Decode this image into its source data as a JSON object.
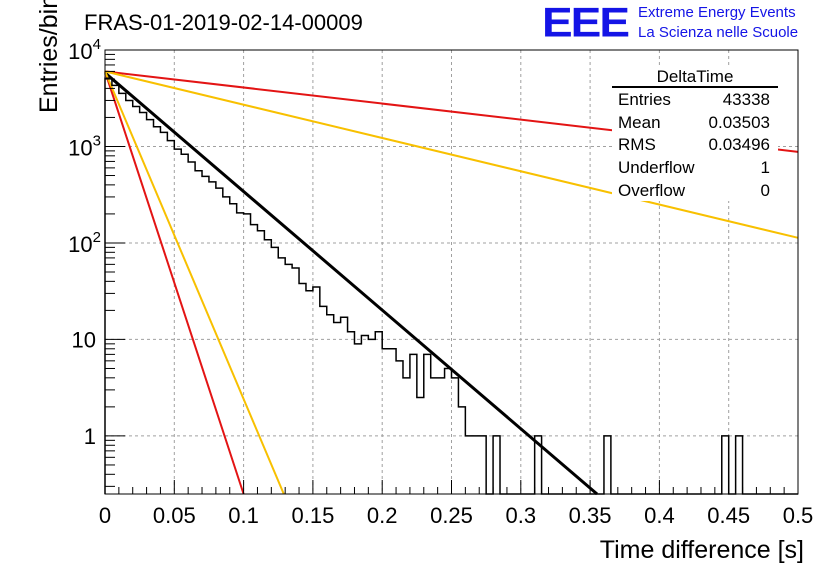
{
  "chart_data": {
    "type": "histogram",
    "title": "FRAS-01-2019-02-14-00009",
    "xlabel": "Time difference [s]",
    "ylabel": "Entries/bin",
    "xlim": [
      0,
      0.5
    ],
    "ylim": [
      0.25,
      10000
    ],
    "yscale": "log",
    "grid": true,
    "x_ticks": [
      "0",
      "0.05",
      "0.1",
      "0.15",
      "0.2",
      "0.25",
      "0.3",
      "0.35",
      "0.4",
      "0.45",
      "0.5"
    ],
    "y_ticks": [
      {
        "value": 1,
        "label": "1"
      },
      {
        "value": 10,
        "label": "10"
      },
      {
        "value": 100,
        "label": "10^2"
      },
      {
        "value": 1000,
        "label": "10^3"
      },
      {
        "value": 10000,
        "label": "10^4"
      }
    ],
    "bin_width": 0.005,
    "histogram_values": [
      5100,
      4300,
      3550,
      3000,
      2600,
      2250,
      1900,
      1600,
      1400,
      1150,
      940,
      830,
      690,
      560,
      490,
      430,
      370,
      300,
      255,
      205,
      200,
      155,
      134,
      108,
      90,
      70,
      60,
      55,
      38,
      32,
      35,
      22,
      18,
      15,
      17,
      12,
      9,
      11,
      10,
      12,
      8,
      8,
      6,
      4,
      7,
      2.5,
      7,
      4,
      4,
      5,
      4,
      2,
      1,
      1,
      1,
      0,
      1,
      0,
      0,
      0,
      0,
      0,
      1,
      0,
      0,
      0,
      0,
      0,
      0,
      0,
      0,
      0,
      1,
      0,
      0,
      0,
      0,
      0,
      0,
      0,
      0,
      0,
      0,
      0,
      0,
      0,
      0,
      0,
      0,
      1,
      0,
      1,
      0,
      0,
      0,
      0,
      0,
      0,
      0,
      0
    ],
    "fit_lines": [
      {
        "color": "#000000",
        "x": [
          0,
          0.355
        ],
        "y": [
          5800,
          0.25
        ]
      },
      {
        "color": "#e31414",
        "x": [
          0,
          0.5
        ],
        "y": [
          6000,
          880
        ]
      },
      {
        "color": "#e31414",
        "x": [
          0,
          0.1
        ],
        "y": [
          6000,
          0.25
        ]
      },
      {
        "color": "#f8c000",
        "x": [
          0,
          0.5
        ],
        "y": [
          6000,
          113
        ]
      },
      {
        "color": "#f8c000",
        "x": [
          0,
          0.129
        ],
        "y": [
          6000,
          0.25
        ]
      }
    ],
    "stats": {
      "name": "DeltaTime",
      "rows": [
        {
          "label": "Entries",
          "value": "43338"
        },
        {
          "label": "Mean",
          "value": "0.03503"
        },
        {
          "label": "RMS",
          "value": "0.03496"
        },
        {
          "label": "Underflow",
          "value": "1"
        },
        {
          "label": "Overflow",
          "value": "0"
        }
      ]
    }
  },
  "logo": {
    "mark": "EEE",
    "line1": "Extreme Energy Events",
    "line2": "La Scienza nelle Scuole"
  }
}
